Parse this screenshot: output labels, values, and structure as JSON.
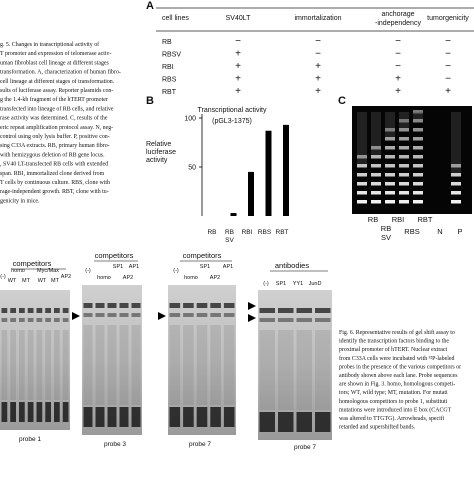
{
  "fig5_caption": [
    "g. 5. Changes in transcriptional activity of",
    "T promoter and expression of telomerase activ-",
    "uman fibroblast cell lineage at different stages",
    "transformation. A, characterization of human fibro-",
    "cell lineage at different stages of transformation.",
    "sults of luciferase assay. Reporter plasmids con-",
    "g the 1.4-kb fragment of the hTERT promoter",
    "transfected into lineage of RB cells, and relative",
    "rase activity was determined. C, results of the",
    "eric repeat amplification protocol assay. N, neg-",
    "control using only lysis buffer. P, positive con-",
    "sing C33A extracts. RB, primary human fibro-",
    "with hemizygous deletion of RB gene locus.",
    ", SV40 LT-transfected RB cells with extended",
    "span. RBI, immortalized clone derived from",
    "T cells by continuous culture. RBS, clone with",
    "rage-independent growth. RBT, clone with tu-",
    "genicity in mice."
  ],
  "fig5a": {
    "label": "A",
    "header": [
      "cell lines",
      "SV40LT",
      "immortalization",
      [
        "anchorage",
        "-independency"
      ],
      "tumorgenicity"
    ],
    "rows": [
      [
        "RB",
        "−",
        "−",
        "−",
        "−"
      ],
      [
        "RBSV",
        "+",
        "−",
        "−",
        "−"
      ],
      [
        "RBI",
        "+",
        "+",
        "−",
        "−"
      ],
      [
        "RBS",
        "+",
        "+",
        "+",
        "−"
      ],
      [
        "RBT",
        "+",
        "+",
        "+",
        "+"
      ]
    ]
  },
  "chart_data": {
    "type": "bar",
    "panel_label": "B",
    "title": "Transcriptional activity",
    "subtitle": "(pGL3-1375)",
    "ylabel": [
      "Relative",
      "luciferase",
      "activity"
    ],
    "categories": [
      "RB",
      "RB SV",
      "RBI",
      "RBS",
      "RBT"
    ],
    "values": [
      0,
      3,
      45,
      87,
      93
    ],
    "color": "#000000",
    "ylim": [
      0,
      100
    ],
    "yticks": [
      50,
      100
    ]
  },
  "fig5c": {
    "label": "C",
    "lanes": [
      "RB",
      "RB SV",
      "RBI",
      "RBS",
      "RBT",
      "N",
      "P"
    ]
  },
  "fig6": {
    "panels": [
      {
        "heading": "competitors",
        "labels": [
          "(-)",
          "homo",
          "Myc/Max",
          "WT",
          "MT",
          "WT",
          "MT",
          "AP2"
        ],
        "probe": "probe 1"
      },
      {
        "heading": "competitors",
        "labels": [
          "(-)",
          "SP1",
          "AP1",
          "homo",
          "AP2"
        ],
        "probe": "probe 3"
      },
      {
        "heading": "competitors",
        "labels": [
          "(-)",
          "SP1",
          "AP1",
          "homo",
          "AP2"
        ],
        "probe": "probe 7"
      },
      {
        "heading": "antibodies",
        "labels": [
          "(-)",
          "SP1",
          "YY1",
          "JunD"
        ],
        "probe": "probe 7"
      }
    ],
    "caption": [
      "Fig. 6. Representative results of gel shift assay to",
      "identify the transcription factors binding to the",
      "proximal promoter of hTERT. Nuclear extract",
      "from C33A cells were incubated with ³²P-labeled",
      "probes in the presence of the various competitors or",
      "antibody shown above each lane. Probe sequences",
      "are shown in Fig. 3. homo, homologous competi-",
      "tors; WT, wild type; MT, mutation. For mutati",
      "homologous competitors to probe 1, substituti",
      "mutations were introduced into E box (CACGT",
      "was altered to TTGTG). Arrowheads, specifi",
      "retarded and supershifted bands."
    ]
  }
}
